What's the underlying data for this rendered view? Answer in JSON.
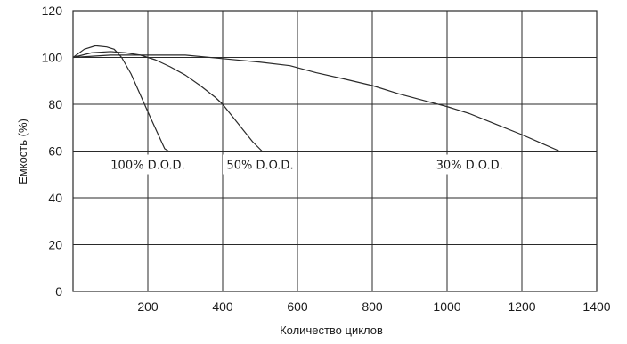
{
  "chart_data": {
    "type": "line",
    "title": "",
    "xlabel": "Количество циклов",
    "ylabel": "Емкость (%)",
    "xlim": [
      0,
      1400
    ],
    "ylim": [
      0,
      120
    ],
    "xticks": [
      200,
      400,
      600,
      800,
      1000,
      1200,
      1400
    ],
    "yticks": [
      0,
      20,
      40,
      60,
      80,
      100,
      120
    ],
    "grid": true,
    "legend": "none",
    "series": [
      {
        "name": "100% D.O.D.",
        "x": [
          0,
          30,
          60,
          90,
          110,
          130,
          155,
          180,
          205,
          225,
          245,
          255
        ],
        "y": [
          100,
          103.5,
          105,
          104.5,
          103.5,
          100,
          93,
          84,
          75,
          68,
          61,
          60
        ]
      },
      {
        "name": "50% D.O.D.",
        "x": [
          0,
          50,
          100,
          140,
          180,
          220,
          260,
          300,
          340,
          380,
          400,
          440,
          480,
          505
        ],
        "y": [
          100,
          102,
          102.5,
          102,
          101,
          99,
          96,
          92.5,
          88,
          83,
          80,
          72,
          64,
          60
        ]
      },
      {
        "name": "30% D.O.D.",
        "x": [
          0,
          100,
          200,
          300,
          400,
          500,
          580,
          650,
          720,
          800,
          870,
          940,
          1000,
          1060,
          1130,
          1200,
          1250,
          1300
        ],
        "y": [
          100,
          101,
          101,
          101,
          99.5,
          98,
          96.5,
          93.5,
          91,
          88,
          84.5,
          81.5,
          79,
          76,
          71.5,
          67,
          63.5,
          60
        ]
      }
    ],
    "series_label_anchor_x": [
      200,
      500,
      1060
    ]
  }
}
